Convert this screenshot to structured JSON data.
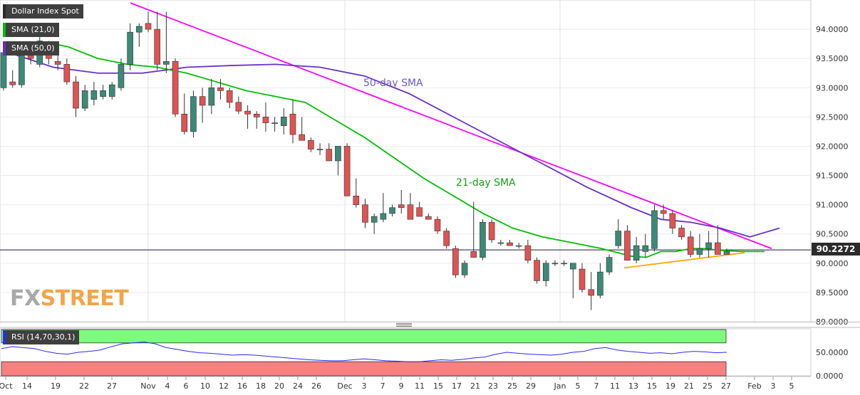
{
  "legend": {
    "title": "Dollar Index Spot",
    "sma21": "SMA (21,0)",
    "sma50": "SMA (50,0)",
    "rsi": "RSI (14,70,30,1)"
  },
  "price_badge": "90.2272",
  "watermark": {
    "part1": "FX",
    "part2": "STREET"
  },
  "colors": {
    "up": "#3b8a77",
    "down": "#e05353",
    "sma21": "#00c000",
    "sma50": "#6a2fc9",
    "trendline_resistance": "#ff00ff",
    "trendline_support": "#ffa500",
    "rsi_overbought_zone": "#7cfc7c",
    "rsi_oversold_zone": "#f88080",
    "rsi_line": "#2a2aff"
  },
  "chart_data": [
    {
      "type": "candlestick",
      "title": "Dollar Index Spot",
      "annotations": [
        "50-day SMA",
        "21-day SMA"
      ],
      "ylim": [
        89.0,
        94.5
      ],
      "y_ticks": [
        "89.0000",
        "89.5000",
        "90.0000",
        "90.5000",
        "91.0000",
        "91.5000",
        "92.0000",
        "92.5000",
        "93.0000",
        "93.5000",
        "94.0000"
      ],
      "x_ticks": [
        "Oct",
        "14",
        "19",
        "22",
        "27",
        "Nov",
        "4",
        "6",
        "10",
        "12",
        "16",
        "18",
        "20",
        "24",
        "26",
        "Dec",
        "3",
        "7",
        "9",
        "11",
        "15",
        "17",
        "21",
        "23",
        "25",
        "29",
        "Jan",
        "5",
        "7",
        "11",
        "13",
        "15",
        "19",
        "21",
        "25",
        "27",
        "Feb",
        "3",
        "5"
      ],
      "last_price": 90.2272,
      "candles": [
        {
          "o": 93.0,
          "h": 93.6,
          "l": 92.95,
          "c": 93.6
        },
        {
          "o": 93.1,
          "h": 93.3,
          "l": 93.0,
          "c": 93.05
        },
        {
          "o": 93.05,
          "h": 93.6,
          "l": 93.0,
          "c": 93.55
        },
        {
          "o": 93.55,
          "h": 93.65,
          "l": 93.4,
          "c": 93.5
        },
        {
          "o": 93.4,
          "h": 93.9,
          "l": 93.35,
          "c": 93.8
        },
        {
          "o": 93.6,
          "h": 93.8,
          "l": 93.4,
          "c": 93.5
        },
        {
          "o": 93.45,
          "h": 93.75,
          "l": 93.3,
          "c": 93.4
        },
        {
          "o": 93.4,
          "h": 93.5,
          "l": 93.05,
          "c": 93.1
        },
        {
          "o": 93.1,
          "h": 93.2,
          "l": 92.5,
          "c": 92.65
        },
        {
          "o": 92.65,
          "h": 93.05,
          "l": 92.6,
          "c": 92.95
        },
        {
          "o": 92.8,
          "h": 93.1,
          "l": 92.7,
          "c": 92.95
        },
        {
          "o": 92.85,
          "h": 93.05,
          "l": 92.8,
          "c": 92.95
        },
        {
          "o": 92.85,
          "h": 93.1,
          "l": 92.8,
          "c": 93.05
        },
        {
          "o": 93.0,
          "h": 93.5,
          "l": 92.95,
          "c": 93.4
        },
        {
          "o": 93.4,
          "h": 94.1,
          "l": 93.3,
          "c": 93.95
        },
        {
          "o": 93.95,
          "h": 94.1,
          "l": 93.7,
          "c": 94.05
        },
        {
          "o": 94.1,
          "h": 94.3,
          "l": 93.95,
          "c": 94.0
        },
        {
          "o": 94.0,
          "h": 94.3,
          "l": 93.3,
          "c": 93.4
        },
        {
          "o": 93.4,
          "h": 94.3,
          "l": 93.25,
          "c": 93.45
        },
        {
          "o": 93.45,
          "h": 93.5,
          "l": 92.5,
          "c": 92.55
        },
        {
          "o": 92.55,
          "h": 92.9,
          "l": 92.2,
          "c": 92.25
        },
        {
          "o": 92.25,
          "h": 92.95,
          "l": 92.15,
          "c": 92.85
        },
        {
          "o": 92.85,
          "h": 93.0,
          "l": 92.4,
          "c": 92.7
        },
        {
          "o": 92.7,
          "h": 93.15,
          "l": 92.55,
          "c": 93.0
        },
        {
          "o": 93.0,
          "h": 93.15,
          "l": 92.8,
          "c": 92.95
        },
        {
          "o": 92.95,
          "h": 93.0,
          "l": 92.65,
          "c": 92.75
        },
        {
          "o": 92.75,
          "h": 92.85,
          "l": 92.55,
          "c": 92.6
        },
        {
          "o": 92.6,
          "h": 92.7,
          "l": 92.3,
          "c": 92.55
        },
        {
          "o": 92.55,
          "h": 92.6,
          "l": 92.3,
          "c": 92.5
        },
        {
          "o": 92.5,
          "h": 92.75,
          "l": 92.25,
          "c": 92.4
        },
        {
          "o": 92.4,
          "h": 92.5,
          "l": 92.25,
          "c": 92.4
        },
        {
          "o": 92.35,
          "h": 92.65,
          "l": 92.2,
          "c": 92.5
        },
        {
          "o": 92.55,
          "h": 92.8,
          "l": 92.05,
          "c": 92.2
        },
        {
          "o": 92.2,
          "h": 92.5,
          "l": 92.1,
          "c": 92.1
        },
        {
          "o": 92.1,
          "h": 92.15,
          "l": 91.9,
          "c": 91.95
        },
        {
          "o": 91.95,
          "h": 92.05,
          "l": 91.85,
          "c": 91.95
        },
        {
          "o": 91.95,
          "h": 92.05,
          "l": 91.75,
          "c": 91.75
        },
        {
          "o": 91.75,
          "h": 92.0,
          "l": 91.5,
          "c": 92.0
        },
        {
          "o": 92.0,
          "h": 92.05,
          "l": 91.15,
          "c": 91.15
        },
        {
          "o": 91.15,
          "h": 91.45,
          "l": 90.95,
          "c": 91.0
        },
        {
          "o": 91.0,
          "h": 91.1,
          "l": 90.6,
          "c": 90.7
        },
        {
          "o": 90.7,
          "h": 90.85,
          "l": 90.5,
          "c": 90.8
        },
        {
          "o": 90.75,
          "h": 91.2,
          "l": 90.7,
          "c": 90.85
        },
        {
          "o": 90.85,
          "h": 91.0,
          "l": 90.8,
          "c": 90.95
        },
        {
          "o": 91.0,
          "h": 91.25,
          "l": 90.85,
          "c": 90.95
        },
        {
          "o": 91.0,
          "h": 91.2,
          "l": 90.75,
          "c": 90.75
        },
        {
          "o": 90.95,
          "h": 91.05,
          "l": 90.8,
          "c": 90.8
        },
        {
          "o": 90.8,
          "h": 90.85,
          "l": 90.75,
          "c": 90.75
        },
        {
          "o": 90.75,
          "h": 90.8,
          "l": 90.5,
          "c": 90.55
        },
        {
          "o": 90.55,
          "h": 90.6,
          "l": 90.25,
          "c": 90.3
        },
        {
          "o": 90.25,
          "h": 90.3,
          "l": 89.75,
          "c": 89.8
        },
        {
          "o": 89.8,
          "h": 90.05,
          "l": 89.75,
          "c": 90.0
        },
        {
          "o": 90.2,
          "h": 91.05,
          "l": 90.1,
          "c": 90.1
        },
        {
          "o": 90.1,
          "h": 90.75,
          "l": 90.05,
          "c": 90.7
        },
        {
          "o": 90.7,
          "h": 90.75,
          "l": 90.35,
          "c": 90.4
        },
        {
          "o": 90.35,
          "h": 90.4,
          "l": 90.3,
          "c": 90.35
        },
        {
          "o": 90.35,
          "h": 90.4,
          "l": 90.3,
          "c": 90.3
        },
        {
          "o": 90.3,
          "h": 90.35,
          "l": 90.25,
          "c": 90.3
        },
        {
          "o": 90.3,
          "h": 90.4,
          "l": 90.0,
          "c": 90.05
        },
        {
          "o": 90.05,
          "h": 90.1,
          "l": 89.65,
          "c": 89.7
        },
        {
          "o": 89.7,
          "h": 90.05,
          "l": 89.6,
          "c": 90.0
        },
        {
          "o": 90.0,
          "h": 90.05,
          "l": 89.95,
          "c": 90.0
        },
        {
          "o": 90.0,
          "h": 90.05,
          "l": 89.95,
          "c": 90.0
        },
        {
          "o": 89.9,
          "h": 90.0,
          "l": 89.4,
          "c": 90.0
        },
        {
          "o": 89.9,
          "h": 90.0,
          "l": 89.5,
          "c": 89.55
        },
        {
          "o": 89.55,
          "h": 89.85,
          "l": 89.2,
          "c": 89.45
        },
        {
          "o": 89.45,
          "h": 90.0,
          "l": 89.4,
          "c": 89.85
        },
        {
          "o": 89.85,
          "h": 90.15,
          "l": 89.8,
          "c": 90.1
        },
        {
          "o": 90.3,
          "h": 90.75,
          "l": 90.25,
          "c": 90.55
        },
        {
          "o": 90.55,
          "h": 90.65,
          "l": 90.05,
          "c": 90.05
        },
        {
          "o": 90.05,
          "h": 90.45,
          "l": 90.0,
          "c": 90.3
        },
        {
          "o": 90.2,
          "h": 90.5,
          "l": 90.1,
          "c": 90.3
        },
        {
          "o": 90.25,
          "h": 91.0,
          "l": 90.2,
          "c": 90.9
        },
        {
          "o": 90.9,
          "h": 91.0,
          "l": 90.75,
          "c": 90.85
        },
        {
          "o": 90.85,
          "h": 90.9,
          "l": 90.5,
          "c": 90.6
        },
        {
          "o": 90.6,
          "h": 90.65,
          "l": 90.4,
          "c": 90.45
        },
        {
          "o": 90.45,
          "h": 90.55,
          "l": 90.1,
          "c": 90.15
        },
        {
          "o": 90.15,
          "h": 90.5,
          "l": 90.1,
          "c": 90.25
        },
        {
          "o": 90.25,
          "h": 90.55,
          "l": 90.1,
          "c": 90.35
        },
        {
          "o": 90.35,
          "h": 90.65,
          "l": 90.15,
          "c": 90.15
        },
        {
          "o": 90.15,
          "h": 90.25,
          "l": 90.15,
          "c": 90.2
        }
      ],
      "x_category_count": 90,
      "sma21": [
        [
          4,
          93.8
        ],
        [
          8,
          93.7
        ],
        [
          12,
          93.5
        ],
        [
          16,
          93.4
        ],
        [
          20,
          93.35
        ],
        [
          24,
          93.25
        ],
        [
          28,
          93.1
        ],
        [
          32,
          92.95
        ],
        [
          36,
          92.85
        ],
        [
          40,
          92.75
        ],
        [
          44,
          92.45
        ],
        [
          48,
          92.15
        ],
        [
          52,
          91.8
        ],
        [
          56,
          91.45
        ],
        [
          60,
          91.15
        ],
        [
          64,
          90.85
        ],
        [
          68,
          90.6
        ],
        [
          72,
          90.45
        ],
        [
          76,
          90.35
        ],
        [
          80,
          90.25
        ],
        [
          84,
          90.12
        ],
        [
          86,
          90.1
        ],
        [
          88,
          90.2
        ],
        [
          90,
          90.2
        ],
        [
          92,
          90.25
        ],
        [
          94,
          90.25
        ],
        [
          96,
          90.22
        ],
        [
          99,
          90.2
        ],
        [
          102,
          90.2
        ]
      ],
      "sma50": [
        [
          0,
          93.6
        ],
        [
          6,
          93.35
        ],
        [
          12,
          93.25
        ],
        [
          18,
          93.25
        ],
        [
          24,
          93.35
        ],
        [
          30,
          93.38
        ],
        [
          36,
          93.4
        ],
        [
          42,
          93.35
        ],
        [
          48,
          93.2
        ],
        [
          54,
          92.9
        ],
        [
          60,
          92.5
        ],
        [
          66,
          92.1
        ],
        [
          72,
          91.7
        ],
        [
          78,
          91.3
        ],
        [
          84,
          90.95
        ],
        [
          88,
          90.75
        ],
        [
          92,
          90.7
        ],
        [
          96,
          90.6
        ],
        [
          100,
          90.45
        ],
        [
          104,
          90.6
        ]
      ],
      "trendlines": [
        {
          "kind": "resistance",
          "from": [
            17,
            94.45
          ],
          "to": [
            108,
            90.25
          ]
        },
        {
          "kind": "support",
          "from": [
            86,
            89.92
          ],
          "to": [
            104,
            90.15
          ]
        }
      ]
    },
    {
      "type": "line",
      "title": "RSI (14,70,30,1)",
      "ylim": [
        0,
        100
      ],
      "y_ticks": [
        "0.0000",
        "50.0000"
      ],
      "overbought": 70,
      "oversold": 30,
      "values": [
        58,
        62,
        60,
        58,
        52,
        48,
        46,
        50,
        52,
        55,
        62,
        68,
        70,
        72,
        68,
        60,
        56,
        52,
        49,
        48,
        46,
        44,
        45,
        44,
        42,
        40,
        38,
        36,
        34,
        33,
        32,
        32,
        34,
        36,
        34,
        32,
        31,
        30,
        30,
        32,
        34,
        33,
        35,
        38,
        40,
        46,
        50,
        48,
        46,
        45,
        44,
        46,
        50,
        52,
        58,
        60,
        55,
        52,
        50,
        48,
        49,
        47,
        50,
        52,
        51,
        49,
        50
      ]
    }
  ]
}
